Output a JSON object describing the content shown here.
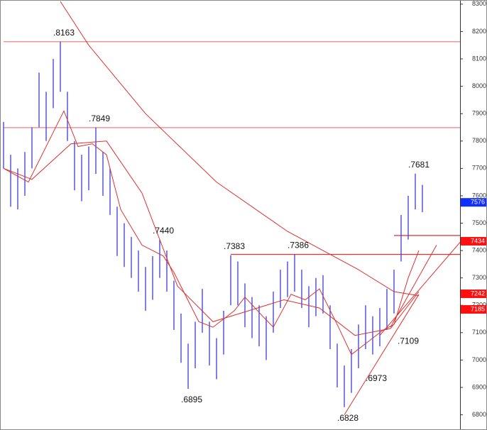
{
  "chart_data": {
    "type": "ohlc",
    "ylim": [
      6760,
      8310
    ],
    "yticks": [
      6800,
      6900,
      7000,
      7100,
      7200,
      7300,
      7400,
      7500,
      7600,
      7700,
      7800,
      7900,
      8000,
      8100,
      8200,
      8300
    ],
    "bar_color": "#3c3cdc",
    "high": [
      7870,
      7750,
      7700,
      7760,
      7850,
      8050,
      7980,
      8100,
      8163,
      7980,
      7800,
      7750,
      7780,
      7849,
      7760,
      7700,
      7560,
      7500,
      7450,
      7400,
      7340,
      7380,
      7440,
      7400,
      7290,
      7170,
      7060,
      7140,
      7260,
      7140,
      7080,
      7180,
      7383,
      7360,
      7280,
      7230,
      7200,
      7160,
      7250,
      7330,
      7360,
      7386,
      7330,
      7270,
      7300,
      7310,
      7200,
      7060,
      6980,
      7040,
      7130,
      7200,
      7160,
      7190,
      7260,
      7330,
      7530,
      7600,
      7681,
      7640
    ],
    "low": [
      7700,
      7560,
      7550,
      7600,
      7700,
      7850,
      7800,
      7920,
      7980,
      7800,
      7620,
      7580,
      7620,
      7680,
      7600,
      7530,
      7380,
      7340,
      7300,
      7250,
      7180,
      7220,
      7300,
      7250,
      7110,
      6990,
      6895,
      6970,
      7100,
      6980,
      6930,
      7020,
      7200,
      7200,
      7120,
      7080,
      7050,
      7000,
      7100,
      7190,
      7230,
      7250,
      7190,
      7120,
      7160,
      7170,
      7040,
      6900,
      6828,
      6880,
      6970,
      7040,
      7020,
      7050,
      7110,
      7170,
      7360,
      7440,
      7550,
      7540
    ],
    "lines": [
      {
        "color": "#e03030",
        "x": [
          0,
          3.5,
          8.5,
          10.5,
          12.5,
          14.5,
          16.5,
          19.5,
          22.5,
          24,
          27.5,
          29.5,
          32.5,
          34,
          36.5,
          38,
          40.5,
          42.5,
          44.5,
          47,
          49,
          51.5,
          53.5,
          55,
          57,
          58.5
        ],
        "values": [
          7700,
          7650,
          7910,
          7780,
          7790,
          7750,
          7550,
          7420,
          7380,
          7320,
          7140,
          7120,
          7180,
          7230,
          7160,
          7120,
          7240,
          7220,
          7260,
          7130,
          7020,
          7070,
          7110,
          7130,
          7300,
          7400
        ]
      },
      {
        "color": "#e03030",
        "x": [
          0,
          4,
          9.5,
          14.5,
          19.5,
          24.5,
          29.5,
          34.5,
          39.5,
          44.5,
          49.5,
          54.5,
          58.5
        ],
        "values": [
          7700,
          7660,
          7790,
          7800,
          7610,
          7270,
          7140,
          7180,
          7220,
          7190,
          7090,
          7115,
          7250
        ]
      },
      {
        "color": "#e03030",
        "x": [
          8,
          12,
          20,
          30,
          40,
          50,
          55,
          58.5
        ],
        "values": [
          8310,
          8150,
          7900,
          7650,
          7470,
          7330,
          7250,
          7235
        ]
      },
      {
        "color": "#e03030",
        "x": [
          48,
          58.5
        ],
        "values": [
          6800,
          7240
        ]
      },
      {
        "color": "#e03030",
        "x": [
          53,
          64.3
        ],
        "values": [
          7090,
          7430
        ]
      },
      {
        "color": "#e03030",
        "x": [
          54.5,
          61
        ],
        "values": [
          7120,
          7420
        ]
      }
    ],
    "levels": [
      {
        "value": 8163,
        "from": 0,
        "color": "#f08080"
      },
      {
        "value": 7849,
        "from": 0,
        "color": "#f08080"
      },
      {
        "value": 7386,
        "from": 32,
        "color": "#e03030"
      },
      {
        "value": 7455,
        "from": 55,
        "color": "#e03030"
      }
    ],
    "annotations": [
      {
        "label": ".8163",
        "value": 8163,
        "index": 8
      },
      {
        "label": ".7849",
        "value": 7849,
        "index": 13
      },
      {
        "label": ".7440",
        "value": 7440,
        "index": 22
      },
      {
        "label": ".7383",
        "value": 7383,
        "index": 32
      },
      {
        "label": ".7386",
        "value": 7386,
        "index": 41
      },
      {
        "label": ".6895",
        "value": 6895,
        "index": 26
      },
      {
        "label": ".6828",
        "value": 6828,
        "index": 48
      },
      {
        "label": ".6973",
        "value": 6973,
        "index": 52
      },
      {
        "label": ".7109",
        "value": 7109,
        "index": 56.5
      },
      {
        "label": ".7681",
        "value": 7681,
        "index": 58
      }
    ],
    "price_tags": [
      {
        "value": 7576,
        "color": "#1030ff"
      },
      {
        "value": 7434,
        "color": "#ff1010"
      },
      {
        "value": 7242,
        "color": "#ff1010"
      },
      {
        "value": 7185,
        "color": "#ff1010"
      }
    ]
  }
}
